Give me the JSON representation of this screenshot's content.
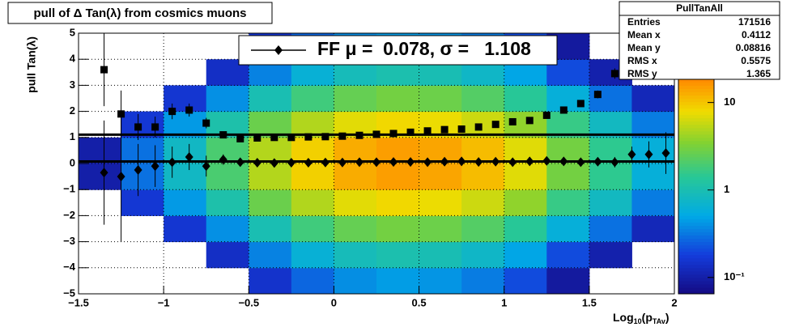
{
  "chart_data": {
    "type": "heatmap-profile",
    "title": "pull of Δ Tan(λ) from cosmics muons",
    "ylabel": "pull Tan(λ)",
    "xlabel": {
      "main": "Log",
      "sub": "10",
      "mid": "(p",
      "sub2": "TAv",
      "end": ")"
    },
    "xlim": [
      -1.5,
      2
    ],
    "ylim": [
      -5,
      5
    ],
    "xticks": [
      {
        "value": -1.5,
        "label": "−1.5"
      },
      {
        "value": -1,
        "label": "−1"
      },
      {
        "value": -0.5,
        "label": "−0.5"
      },
      0,
      0.5,
      1,
      1.5,
      2
    ],
    "yticks": [
      {
        "value": -5,
        "label": "−5"
      },
      {
        "value": -4,
        "label": "−4"
      },
      {
        "value": -3,
        "label": "−3"
      },
      {
        "value": -2,
        "label": "−2"
      },
      {
        "value": -1,
        "label": "−1"
      },
      0,
      1,
      2,
      3,
      4,
      5
    ],
    "grid": true,
    "zlog": true,
    "zlim": [
      0.065,
      62
    ],
    "zticks": [
      {
        "value": 0.1,
        "label": "10⁻¹"
      },
      1,
      10
    ],
    "heatmap": {
      "xbins": [
        -1.5,
        -1.25,
        -1,
        -0.75,
        -0.5,
        -0.25,
        0,
        0.25,
        0.5,
        0.75,
        1,
        1.25,
        1.5,
        1.75,
        2
      ],
      "ybins": [
        -5,
        -4,
        -3,
        -2,
        -1,
        0,
        1,
        2,
        3,
        4,
        5
      ],
      "z": [
        [
          0.003,
          0.009,
          0.024,
          0.06,
          0.15,
          0.27,
          0.39,
          0.45,
          0.42,
          0.33,
          0.21,
          0.09,
          0.045,
          0.018
        ],
        [
          0.007,
          0.021,
          0.056,
          0.14,
          0.35,
          0.63,
          0.91,
          1.05,
          0.98,
          0.77,
          0.49,
          0.21,
          0.105,
          0.042
        ],
        [
          0.02,
          0.06,
          0.16,
          0.4,
          1,
          1.8,
          2.6,
          3,
          2.8,
          2.2,
          1.4,
          0.6,
          0.3,
          0.12
        ],
        [
          0.055,
          0.165,
          0.44,
          1.1,
          2.75,
          4.95,
          7.15,
          8.25,
          7.7,
          6.05,
          3.85,
          1.65,
          0.825,
          0.33
        ],
        [
          0.1,
          0.3,
          0.8,
          2,
          5,
          9,
          13,
          15,
          14,
          11,
          7,
          3,
          1.5,
          0.6
        ],
        [
          0.1,
          0.3,
          0.8,
          2,
          5,
          9,
          13,
          15,
          14,
          11,
          7,
          3,
          1.5,
          0.6
        ],
        [
          0.055,
          0.165,
          0.44,
          1.1,
          2.75,
          4.95,
          7.15,
          8.25,
          7.7,
          6.05,
          3.85,
          1.65,
          0.825,
          0.33
        ],
        [
          0.02,
          0.06,
          0.16,
          0.4,
          1,
          1.8,
          2.6,
          3,
          2.8,
          2.2,
          1.4,
          0.6,
          0.3,
          0.12
        ],
        [
          0.007,
          0.021,
          0.056,
          0.14,
          0.35,
          0.63,
          0.91,
          1.05,
          0.98,
          0.77,
          0.49,
          0.21,
          0.105,
          0.042
        ],
        [
          0.003,
          0.009,
          0.024,
          0.06,
          0.15,
          0.27,
          0.39,
          0.45,
          0.42,
          0.33,
          0.21,
          0.09,
          0.045,
          0.018
        ]
      ]
    },
    "x": [
      -1.35,
      -1.25,
      -1.15,
      -1.05,
      -0.95,
      -0.85,
      -0.75,
      -0.65,
      -0.55,
      -0.45,
      -0.35,
      -0.25,
      -0.15,
      -0.05,
      0.05,
      0.15,
      0.25,
      0.35,
      0.45,
      0.55,
      0.65,
      0.75,
      0.85,
      0.95,
      1.05,
      1.15,
      1.25,
      1.35,
      1.45,
      1.55,
      1.65,
      1.75,
      1.85,
      1.95
    ],
    "series": [
      {
        "marker": "square",
        "color": "#000000",
        "values": [
          3.6,
          1.9,
          1.4,
          1.4,
          2.0,
          2.05,
          1.55,
          1.1,
          0.95,
          0.98,
          1.0,
          1.0,
          1.02,
          1.03,
          1.05,
          1.08,
          1.12,
          1.15,
          1.2,
          1.25,
          1.3,
          1.32,
          1.4,
          1.5,
          1.6,
          1.65,
          1.85,
          2.05,
          2.3,
          2.65,
          3.45,
          3.5,
          3.7,
          3.8
        ],
        "errors": [
          1.4,
          0.9,
          0.5,
          0.4,
          0.3,
          0.25,
          0.2,
          0.1,
          0.05,
          0.04,
          0.03,
          0.03,
          0.03,
          0.03,
          0.03,
          0.03,
          0.03,
          0.03,
          0.03,
          0.03,
          0.03,
          0.04,
          0.04,
          0.05,
          0.06,
          0.07,
          0.08,
          0.1,
          0.12,
          0.15,
          0.2,
          0.3,
          0.4,
          0.5
        ]
      },
      {
        "marker": "diamond",
        "color": "#000000",
        "values": [
          -0.35,
          -0.5,
          -0.25,
          -0.1,
          0.05,
          0.25,
          -0.1,
          0.15,
          0.05,
          0.03,
          0.02,
          0.03,
          0.03,
          0.04,
          0.04,
          0.05,
          0.05,
          0.06,
          0.06,
          0.05,
          0.07,
          0.08,
          0.06,
          0.07,
          0.05,
          0.08,
          0.1,
          0.08,
          0.05,
          0.07,
          0.05,
          0.35,
          0.35,
          0.4
        ],
        "errors": [
          2.0,
          2.5,
          1.0,
          0.8,
          0.6,
          0.5,
          0.4,
          0.2,
          0.08,
          0.05,
          0.04,
          0.03,
          0.03,
          0.03,
          0.03,
          0.03,
          0.03,
          0.03,
          0.03,
          0.03,
          0.03,
          0.03,
          0.04,
          0.04,
          0.05,
          0.06,
          0.07,
          0.08,
          0.1,
          0.12,
          0.2,
          0.3,
          0.5,
          0.8
        ]
      }
    ],
    "fit": {
      "label": "FF μ =  0.078, σ =   1.108",
      "mu": 0.078,
      "sigma": 1.108
    },
    "stats": {
      "title": "PullTanAll",
      "rows": [
        [
          "Entries",
          "171516"
        ],
        [
          "Mean x",
          "0.4112"
        ],
        [
          "Mean y",
          "0.08816"
        ],
        [
          "RMS x",
          "0.5575"
        ],
        [
          "RMS y",
          "1.365"
        ]
      ]
    }
  }
}
